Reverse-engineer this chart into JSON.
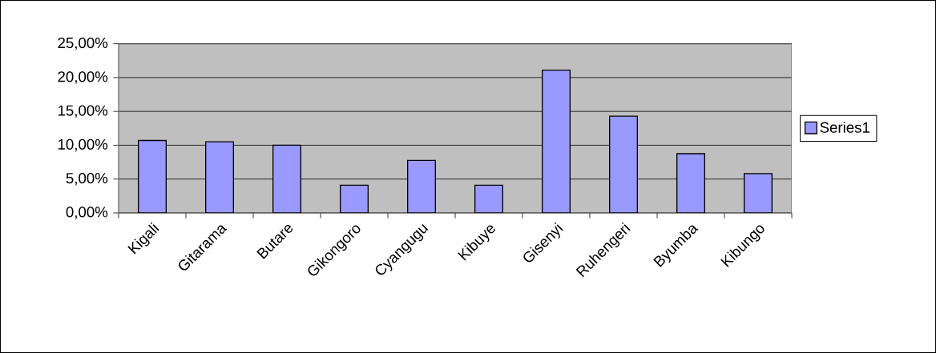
{
  "chart_data": {
    "type": "bar",
    "categories": [
      "Kigali",
      "Gitarama",
      "Butare",
      "Gikongoro",
      "Cyangugu",
      "Kibuye",
      "Gisenyi",
      "Ruhengeri",
      "Byumba",
      "Kibungo"
    ],
    "series": [
      {
        "name": "Series1",
        "color": "#9999ff",
        "values": [
          10.7,
          10.5,
          10.0,
          4.1,
          7.75,
          4.1,
          21.1,
          14.3,
          8.75,
          5.8
        ]
      }
    ],
    "ylim": [
      0,
      25
    ],
    "yticks": [
      {
        "value": 0,
        "label": "0,00%"
      },
      {
        "value": 5,
        "label": "5,00%"
      },
      {
        "value": 10,
        "label": "10,00%"
      },
      {
        "value": 15,
        "label": "15,00%"
      },
      {
        "value": 20,
        "label": "20,00%"
      },
      {
        "value": 25,
        "label": "25,00%"
      }
    ],
    "grid": "y",
    "legend": "right"
  }
}
